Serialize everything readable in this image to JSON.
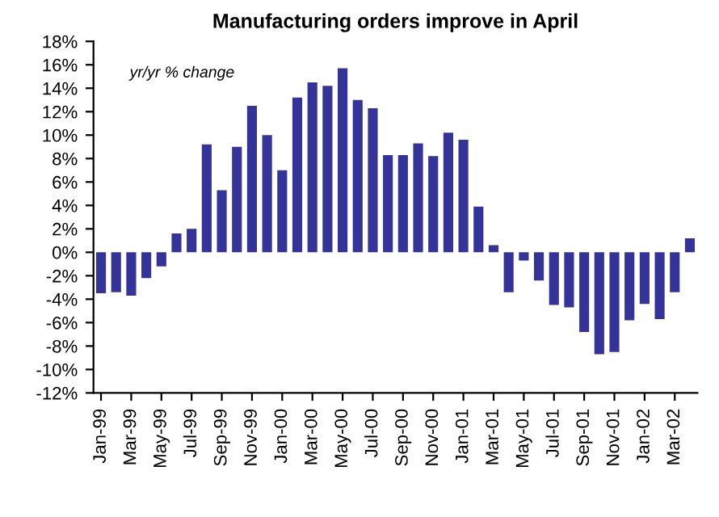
{
  "chart_data": {
    "type": "bar",
    "title": "Manufacturing orders improve in April",
    "annotations": [
      "yr/yr % change"
    ],
    "categories": [
      "Jan-99",
      null,
      "Mar-99",
      null,
      "May-99",
      null,
      "Jul-99",
      null,
      "Sep-99",
      null,
      "Nov-99",
      null,
      "Jan-00",
      null,
      "Mar-00",
      null,
      "May-00",
      null,
      "Jul-00",
      null,
      "Sep-00",
      null,
      "Nov-00",
      null,
      "Jan-01",
      null,
      "Mar-01",
      null,
      "May-01",
      null,
      "Jul-01",
      null,
      "Sep-01",
      null,
      "Nov-01",
      null,
      "Jan-02",
      null,
      "Mar-02",
      null
    ],
    "values": [
      -3.5,
      -3.4,
      -3.7,
      -2.2,
      -1.2,
      1.6,
      2.0,
      9.2,
      5.3,
      9.0,
      12.5,
      10.0,
      7.0,
      13.2,
      14.5,
      14.2,
      15.7,
      13.0,
      12.3,
      8.3,
      8.3,
      9.3,
      8.2,
      10.2,
      9.6,
      3.9,
      0.6,
      -3.4,
      -0.7,
      -2.4,
      -4.5,
      -4.7,
      -6.8,
      -8.7,
      -8.5,
      -5.8,
      -4.4,
      -5.7,
      -3.4,
      1.2
    ],
    "color": "#333399",
    "ylim": [
      -12,
      18
    ],
    "yticks": [
      {
        "value": -12,
        "label": "-12%"
      },
      {
        "value": -10,
        "label": "-10%"
      },
      {
        "value": -8,
        "label": "-8%"
      },
      {
        "value": -6,
        "label": "-6%"
      },
      {
        "value": -4,
        "label": "-4%"
      },
      {
        "value": -2,
        "label": "-2%"
      },
      {
        "value": 0,
        "label": "0%"
      },
      {
        "value": 2,
        "label": "2%"
      },
      {
        "value": 4,
        "label": "4%"
      },
      {
        "value": 6,
        "label": "6%"
      },
      {
        "value": 8,
        "label": "8%"
      },
      {
        "value": 10,
        "label": "10%"
      },
      {
        "value": 12,
        "label": "12%"
      },
      {
        "value": 14,
        "label": "14%"
      },
      {
        "value": 16,
        "label": "16%"
      },
      {
        "value": 18,
        "label": "18%"
      }
    ],
    "grid": false,
    "legend": false
  }
}
